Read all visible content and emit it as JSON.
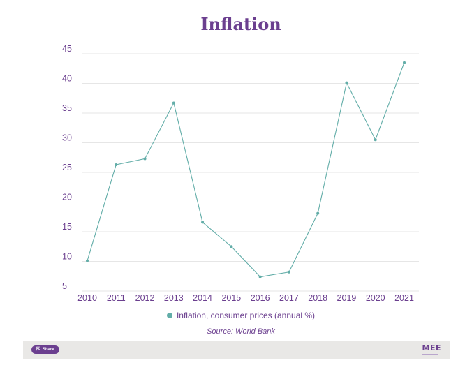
{
  "chart_data": {
    "type": "line",
    "title": "Inflation",
    "x": [
      "2010",
      "2011",
      "2012",
      "2013",
      "2014",
      "2015",
      "2016",
      "2017",
      "2018",
      "2019",
      "2020",
      "2021"
    ],
    "series": [
      {
        "name": "Inflation, consumer prices (annual %)",
        "values": [
          10.1,
          26.3,
          27.3,
          36.7,
          16.6,
          12.5,
          7.4,
          8.2,
          18.1,
          40.1,
          30.5,
          43.5
        ]
      }
    ],
    "ylim": [
      5,
      45
    ],
    "yticks": [
      5,
      10,
      15,
      20,
      25,
      30,
      35,
      40,
      45
    ],
    "grid": true,
    "legend": "bottom-center",
    "source": "Source: World Bank"
  },
  "colors": {
    "accent": "#6b3f8f",
    "line": "#62ada8",
    "grid": "#e6e6e6",
    "footer": "#e9e8e6"
  },
  "footer": {
    "share_label": "Share",
    "share_icon": "share-icon",
    "logo_text": "MEE"
  }
}
